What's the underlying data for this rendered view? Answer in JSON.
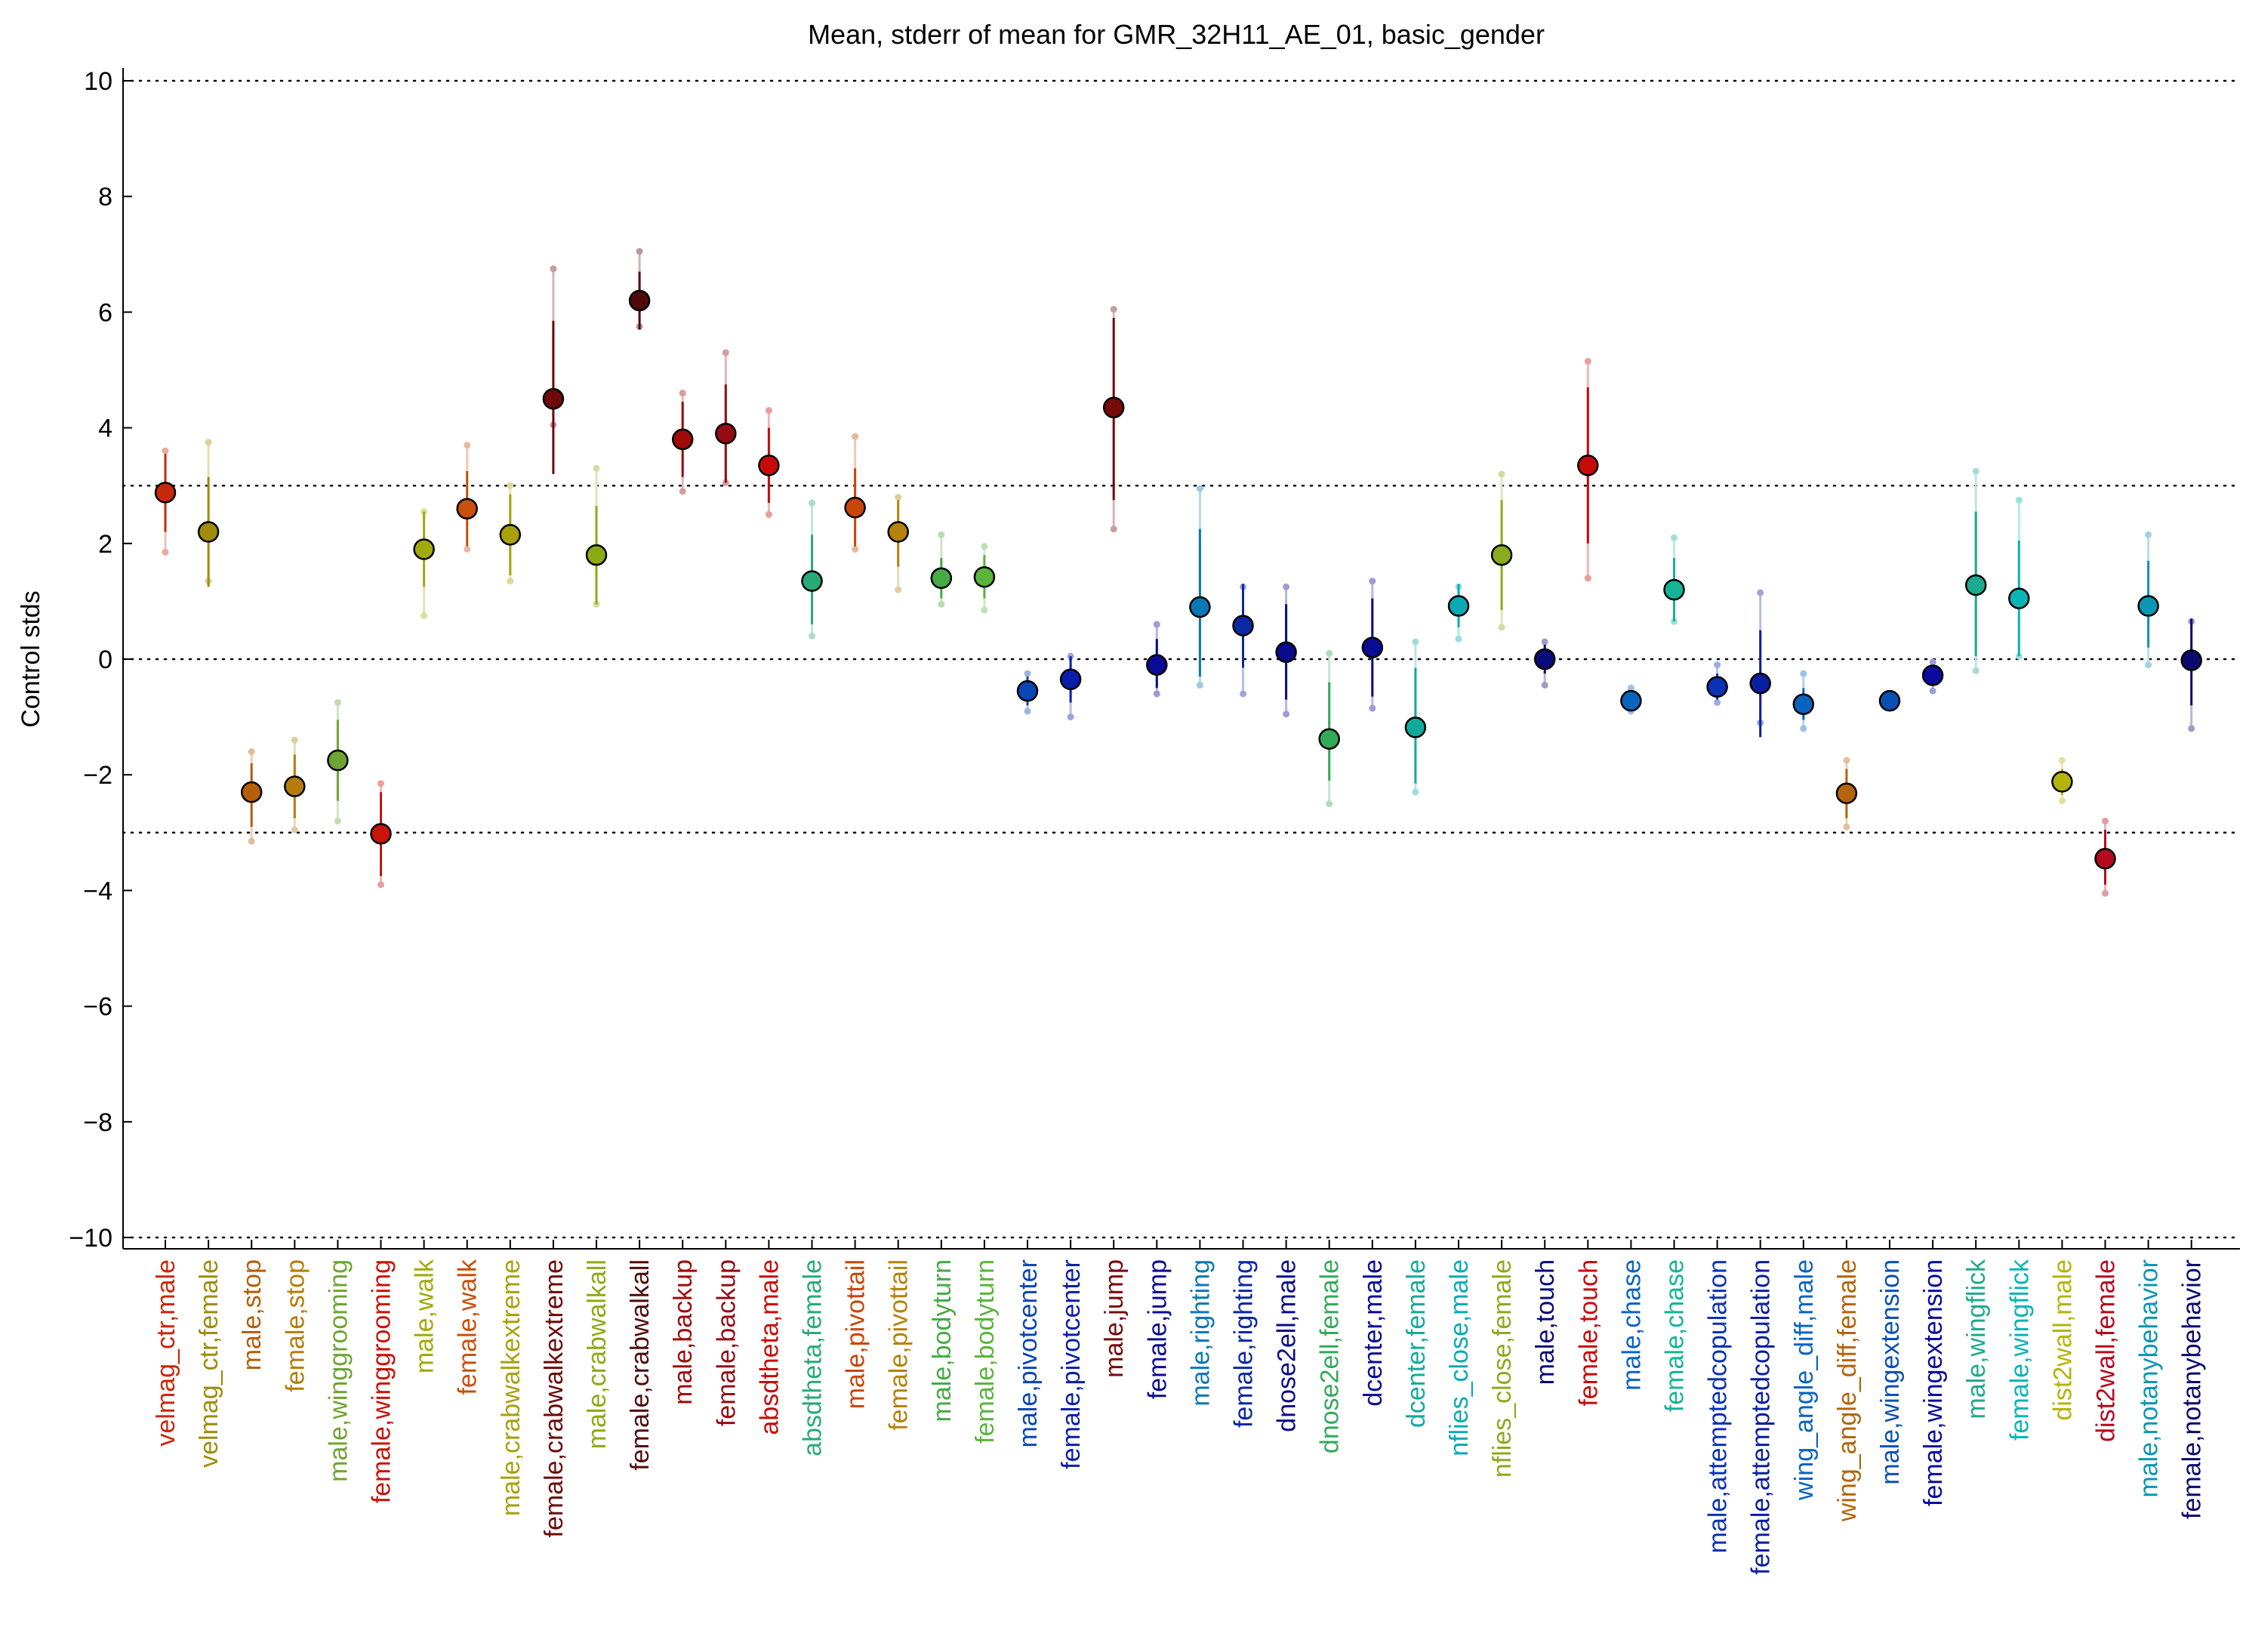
{
  "chart_data": {
    "type": "scatter",
    "title": "Mean, stderr of mean for GMR_32H11_AE_01, basic_gender",
    "xlabel": "",
    "ylabel": "Control stds",
    "ylim": [
      -10.2,
      10.2
    ],
    "yticks": [
      10,
      8,
      6,
      4,
      2,
      0,
      -2,
      -4,
      -6,
      -8,
      -10
    ],
    "ytick_labels": [
      "10",
      "8",
      "6",
      "4",
      "2",
      "0",
      "−2",
      "−4",
      "−6",
      "−8",
      "−10"
    ],
    "reference_lines": [
      10,
      3,
      0,
      -3,
      -10
    ],
    "grid": false,
    "points": [
      {
        "label": "velmag_ctr,male",
        "color": "#c8280a",
        "mean": 2.88,
        "se_low": 2.2,
        "se_high": 3.55,
        "min": 1.85,
        "max": 3.6
      },
      {
        "label": "velmag_ctr,female",
        "color": "#a08c0a",
        "mean": 2.2,
        "se_low": 1.25,
        "se_high": 3.15,
        "min": 1.35,
        "max": 3.75
      },
      {
        "label": "male,stop",
        "color": "#b45f0a",
        "mean": -2.3,
        "se_low": -2.9,
        "se_high": -1.8,
        "min": -3.15,
        "max": -1.6
      },
      {
        "label": "female,stop",
        "color": "#b47d0a",
        "mean": -2.2,
        "se_low": -2.75,
        "se_high": -1.65,
        "min": -2.95,
        "max": -1.4
      },
      {
        "label": "male,winggrooming",
        "color": "#6ea532",
        "mean": -1.75,
        "se_low": -2.45,
        "se_high": -1.05,
        "min": -2.8,
        "max": -0.75
      },
      {
        "label": "female,winggrooming",
        "color": "#c8140a",
        "mean": -3.02,
        "se_low": -3.75,
        "se_high": -2.3,
        "min": -3.9,
        "max": -2.15
      },
      {
        "label": "male,walk",
        "color": "#a0aa0a",
        "mean": 1.9,
        "se_low": 1.25,
        "se_high": 2.55,
        "min": 0.75,
        "max": 2.55
      },
      {
        "label": "female,walk",
        "color": "#c8500a",
        "mean": 2.6,
        "se_low": 1.95,
        "se_high": 3.25,
        "min": 1.9,
        "max": 3.7
      },
      {
        "label": "male,crabwalkextreme",
        "color": "#aaa00a",
        "mean": 2.15,
        "se_low": 1.45,
        "se_high": 2.85,
        "min": 1.35,
        "max": 3.0
      },
      {
        "label": "female,crabwalkextreme",
        "color": "#6e0a0a",
        "mean": 4.5,
        "se_low": 3.2,
        "se_high": 5.85,
        "min": 4.05,
        "max": 6.75
      },
      {
        "label": "male,crabwalkall",
        "color": "#8caa14",
        "mean": 1.8,
        "se_low": 0.95,
        "se_high": 2.65,
        "min": 0.95,
        "max": 3.3
      },
      {
        "label": "female,crabwalkall",
        "color": "#500a0a",
        "mean": 6.2,
        "se_low": 5.7,
        "se_high": 6.7,
        "min": 5.75,
        "max": 7.05
      },
      {
        "label": "male,backup",
        "color": "#a00a0a",
        "mean": 3.8,
        "se_low": 3.15,
        "se_high": 4.45,
        "min": 2.9,
        "max": 4.6
      },
      {
        "label": "female,backup",
        "color": "#960a14",
        "mean": 3.9,
        "se_low": 3.05,
        "se_high": 4.75,
        "min": 3.05,
        "max": 5.3
      },
      {
        "label": "absdtheta,male",
        "color": "#c80a0a",
        "mean": 3.35,
        "se_low": 2.7,
        "se_high": 4.0,
        "min": 2.5,
        "max": 4.3
      },
      {
        "label": "absdtheta,female",
        "color": "#28aa78",
        "mean": 1.35,
        "se_low": 0.6,
        "se_high": 2.15,
        "min": 0.4,
        "max": 2.7
      },
      {
        "label": "male,pivottail",
        "color": "#c8460a",
        "mean": 2.62,
        "se_low": 1.95,
        "se_high": 3.3,
        "min": 1.9,
        "max": 3.85
      },
      {
        "label": "female,pivottail",
        "color": "#b4820a",
        "mean": 2.2,
        "se_low": 1.6,
        "se_high": 2.75,
        "min": 1.2,
        "max": 2.8
      },
      {
        "label": "male,bodyturn",
        "color": "#46aa46",
        "mean": 1.4,
        "se_low": 1.05,
        "se_high": 1.75,
        "min": 0.95,
        "max": 2.15
      },
      {
        "label": "female,bodyturn",
        "color": "#5ab43c",
        "mean": 1.42,
        "se_low": 1.05,
        "se_high": 1.8,
        "min": 0.85,
        "max": 1.95
      },
      {
        "label": "male,pivotcenter",
        "color": "#0a46b4",
        "mean": -0.55,
        "se_low": -0.8,
        "se_high": -0.3,
        "min": -0.9,
        "max": -0.25
      },
      {
        "label": "female,pivotcenter",
        "color": "#0a1eaa",
        "mean": -0.35,
        "se_low": -0.75,
        "se_high": 0.05,
        "min": -1.0,
        "max": 0.05
      },
      {
        "label": "male,jump",
        "color": "#780a0a",
        "mean": 4.35,
        "se_low": 2.75,
        "se_high": 5.9,
        "min": 2.25,
        "max": 6.05
      },
      {
        "label": "female,jump",
        "color": "#0a0a96",
        "mean": -0.1,
        "se_low": -0.5,
        "se_high": 0.35,
        "min": -0.6,
        "max": 0.6
      },
      {
        "label": "male,righting",
        "color": "#0a78b4",
        "mean": 0.9,
        "se_low": -0.3,
        "se_high": 2.25,
        "min": -0.45,
        "max": 2.95
      },
      {
        "label": "female,righting",
        "color": "#0a28a0",
        "mean": 0.58,
        "se_low": -0.15,
        "se_high": 1.3,
        "min": -0.6,
        "max": 1.25
      },
      {
        "label": "dnose2ell,male",
        "color": "#0a0a8c",
        "mean": 0.12,
        "se_low": -0.7,
        "se_high": 0.95,
        "min": -0.95,
        "max": 1.25
      },
      {
        "label": "dnose2ell,female",
        "color": "#32aa5a",
        "mean": -1.38,
        "se_low": -2.1,
        "se_high": -0.4,
        "min": -2.5,
        "max": 0.1
      },
      {
        "label": "dcenter,male",
        "color": "#0a0a96",
        "mean": 0.2,
        "se_low": -0.65,
        "se_high": 1.05,
        "min": -0.85,
        "max": 1.35
      },
      {
        "label": "dcenter,female",
        "color": "#14aa9b",
        "mean": -1.18,
        "se_low": -2.15,
        "se_high": -0.15,
        "min": -2.3,
        "max": 0.3
      },
      {
        "label": "nflies_close,male",
        "color": "#0aaab4",
        "mean": 0.92,
        "se_low": 0.55,
        "se_high": 1.3,
        "min": 0.35,
        "max": 1.25
      },
      {
        "label": "nflies_close,female",
        "color": "#8caa1e",
        "mean": 1.8,
        "se_low": 0.85,
        "se_high": 2.75,
        "min": 0.55,
        "max": 3.2
      },
      {
        "label": "male,touch",
        "color": "#0a0a78",
        "mean": 0.0,
        "se_low": -0.25,
        "se_high": 0.25,
        "min": -0.45,
        "max": 0.3
      },
      {
        "label": "female,touch",
        "color": "#c80a0a",
        "mean": 3.35,
        "se_low": 2.0,
        "se_high": 4.7,
        "min": 1.4,
        "max": 5.15
      },
      {
        "label": "male,chase",
        "color": "#0a64be",
        "mean": -0.72,
        "se_low": -0.85,
        "se_high": -0.6,
        "min": -0.9,
        "max": -0.5
      },
      {
        "label": "female,chase",
        "color": "#14b496",
        "mean": 1.2,
        "se_low": 0.65,
        "se_high": 1.75,
        "min": 0.65,
        "max": 2.1
      },
      {
        "label": "male,attemptedcopulation",
        "color": "#0a32b4",
        "mean": -0.48,
        "se_low": -0.7,
        "se_high": -0.25,
        "min": -0.75,
        "max": -0.1
      },
      {
        "label": "female,attemptedcopulation",
        "color": "#0a1ea0",
        "mean": -0.42,
        "se_low": -1.35,
        "se_high": 0.5,
        "min": -1.1,
        "max": 1.15
      },
      {
        "label": "wing_angle_diff,male",
        "color": "#0a64be",
        "mean": -0.78,
        "se_low": -1.05,
        "se_high": -0.5,
        "min": -1.2,
        "max": -0.25
      },
      {
        "label": "wing_angle_diff,female",
        "color": "#b4640a",
        "mean": -2.32,
        "se_low": -2.75,
        "se_high": -1.9,
        "min": -2.9,
        "max": -1.75
      },
      {
        "label": "male,wingextension",
        "color": "#0a50b4",
        "mean": -0.72,
        "se_low": -0.82,
        "se_high": -0.62,
        "min": -0.85,
        "max": -0.6
      },
      {
        "label": "female,wingextension",
        "color": "#0a0aa0",
        "mean": -0.28,
        "se_low": -0.45,
        "se_high": -0.12,
        "min": -0.55,
        "max": -0.05
      },
      {
        "label": "male,wingflick",
        "color": "#1eaa8c",
        "mean": 1.28,
        "se_low": 0.05,
        "se_high": 2.55,
        "min": -0.2,
        "max": 3.25
      },
      {
        "label": "female,wingflick",
        "color": "#0ab4b4",
        "mean": 1.05,
        "se_low": 0.05,
        "se_high": 2.05,
        "min": 0.05,
        "max": 2.75
      },
      {
        "label": "dist2wall,male",
        "color": "#b4b40a",
        "mean": -2.12,
        "se_low": -2.35,
        "se_high": -1.9,
        "min": -2.45,
        "max": -1.75
      },
      {
        "label": "dist2wall,female",
        "color": "#b40a1e",
        "mean": -3.45,
        "se_low": -3.9,
        "se_high": -2.95,
        "min": -4.05,
        "max": -2.8
      },
      {
        "label": "male,notanybehavior",
        "color": "#0a96b4",
        "mean": 0.92,
        "se_low": 0.2,
        "se_high": 1.7,
        "min": -0.1,
        "max": 2.15
      },
      {
        "label": "female,notanybehavior",
        "color": "#0a0a6e",
        "mean": -0.02,
        "se_low": -0.8,
        "se_high": 0.7,
        "min": -1.2,
        "max": 0.65
      }
    ]
  }
}
